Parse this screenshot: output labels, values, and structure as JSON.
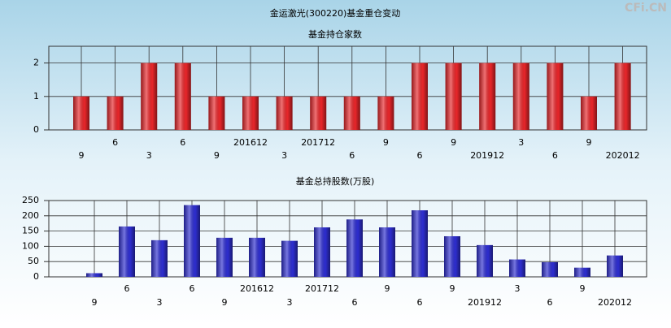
{
  "title": "金运激光(300220)基金重仓变动",
  "watermark": "CFi.CN",
  "chart_data": [
    {
      "type": "bar",
      "title": "基金持仓家数",
      "color": "#e8262a",
      "categories": [
        "9",
        "6",
        "3",
        "6",
        "9",
        "201612",
        "3",
        "201712",
        "6",
        "9",
        "6",
        "9",
        "201912",
        "3",
        "6",
        "9",
        "202012"
      ],
      "values": [
        1,
        1,
        2,
        2,
        1,
        1,
        1,
        1,
        1,
        1,
        2,
        2,
        2,
        2,
        2,
        1,
        2
      ],
      "ylim": [
        0,
        2.5
      ],
      "yticks": [
        0,
        1,
        2
      ],
      "grid": true
    },
    {
      "type": "bar",
      "title": "基金总持股数(万股)",
      "color": "#2e2ed0",
      "categories": [
        "9",
        "6",
        "3",
        "6",
        "9",
        "201612",
        "3",
        "201712",
        "6",
        "9",
        "6",
        "9",
        "201912",
        "3",
        "6",
        "9",
        "202012"
      ],
      "values": [
        12,
        165,
        120,
        235,
        128,
        128,
        118,
        162,
        188,
        162,
        218,
        133,
        104,
        57,
        48,
        30,
        70
      ],
      "ylim": [
        0,
        250
      ],
      "yticks": [
        0,
        50,
        100,
        150,
        200,
        250
      ],
      "grid": true
    }
  ]
}
